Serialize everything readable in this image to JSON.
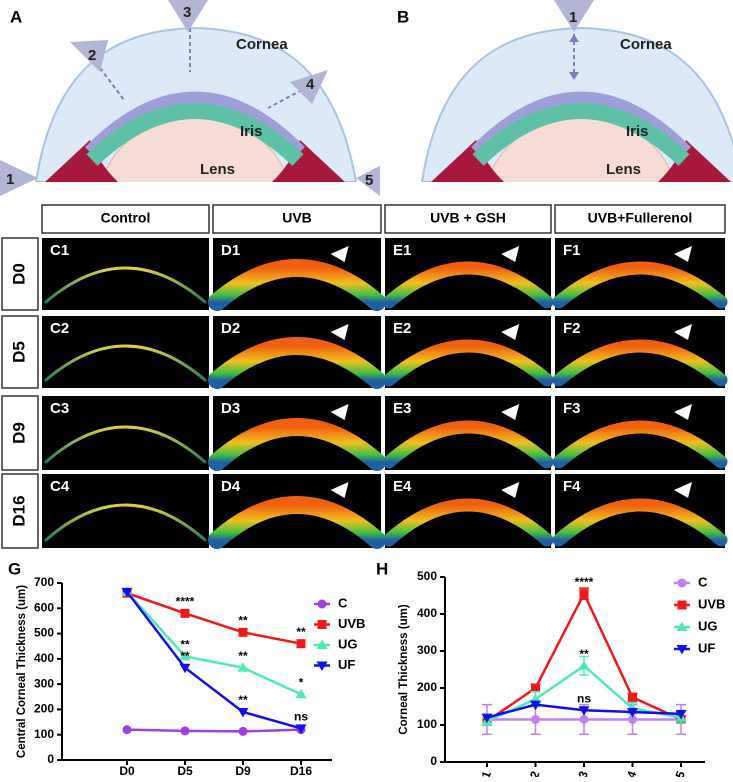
{
  "panel_a": {
    "label": "A",
    "cornea": "Cornea",
    "iris": "Iris",
    "lens": "Lens",
    "positions": [
      "1",
      "2",
      "3",
      "4",
      "5"
    ]
  },
  "panel_b": {
    "label": "B",
    "cornea": "Cornea",
    "iris": "Iris",
    "lens": "Lens",
    "positions": [
      "1"
    ]
  },
  "image_grid": {
    "columns": [
      "Control",
      "UVB",
      "UVB + GSH",
      "UVB+Fullerenol"
    ],
    "rows": [
      "D0",
      "D5",
      "D9",
      "D16"
    ],
    "panels": [
      [
        "C1",
        "D1",
        "E1",
        "F1"
      ],
      [
        "C2",
        "D2",
        "E2",
        "F2"
      ],
      [
        "C3",
        "D3",
        "E3",
        "F3"
      ],
      [
        "C4",
        "D4",
        "E4",
        "F4"
      ]
    ]
  },
  "chart_data": [
    {
      "type": "line",
      "panel_label": "G",
      "y_label": "Central Corneal Thickness (um)",
      "categories": [
        "D0",
        "D5",
        "D9",
        "D16"
      ],
      "ylim": [
        0,
        700
      ],
      "yticks": [
        0,
        100,
        200,
        300,
        400,
        500,
        600,
        700
      ],
      "series": [
        {
          "name": "C",
          "color": "#a040e0",
          "marker": "circle",
          "values": [
            120,
            115,
            113,
            120
          ]
        },
        {
          "name": "UVB",
          "color": "#f01818",
          "marker": "square",
          "values": [
            660,
            580,
            505,
            460
          ]
        },
        {
          "name": "UG",
          "color": "#50e8b8",
          "marker": "triangle-up",
          "values": [
            665,
            410,
            365,
            260
          ]
        },
        {
          "name": "UF",
          "color": "#1010e8",
          "marker": "triangle-down",
          "values": [
            665,
            365,
            190,
            125
          ]
        }
      ],
      "annotations": [
        {
          "text": "****",
          "series": "UVB",
          "category": "D5"
        },
        {
          "text": "**",
          "series": "UVB",
          "category": "D9"
        },
        {
          "text": "**",
          "series": "UVB",
          "category": "D16"
        },
        {
          "text": "**",
          "series": "UG",
          "category": "D5"
        },
        {
          "text": "**",
          "series": "UG",
          "category": "D9"
        },
        {
          "text": "*",
          "series": "UG",
          "category": "D16"
        },
        {
          "text": "**",
          "series": "UF",
          "category": "D5"
        },
        {
          "text": "**",
          "series": "UF",
          "category": "D9"
        },
        {
          "text": "ns",
          "series": "UF",
          "category": "D16"
        }
      ]
    },
    {
      "type": "line",
      "panel_label": "H",
      "y_label": "Corneal Thickness (um)",
      "categories": [
        "1",
        "2",
        "3",
        "4",
        "5"
      ],
      "ylim": [
        0,
        500
      ],
      "yticks": [
        0,
        100,
        200,
        300,
        400,
        500
      ],
      "series": [
        {
          "name": "C",
          "color": "#c080f0",
          "marker": "circle",
          "values": [
            115,
            115,
            115,
            115,
            115
          ],
          "errors": [
            40,
            40,
            40,
            40,
            40
          ]
        },
        {
          "name": "UVB",
          "color": "#f01818",
          "marker": "square",
          "values": [
            110,
            200,
            455,
            175,
            115
          ],
          "errors": [
            10,
            10,
            15,
            10,
            10
          ]
        },
        {
          "name": "UG",
          "color": "#50e8b8",
          "marker": "triangle-up",
          "values": [
            110,
            170,
            260,
            145,
            120
          ],
          "errors": [
            10,
            20,
            25,
            15,
            15
          ]
        },
        {
          "name": "UF",
          "color": "#1010e8",
          "marker": "triangle-down",
          "values": [
            120,
            155,
            140,
            135,
            130
          ]
        }
      ],
      "annotations": [
        {
          "text": "****",
          "series": "UVB",
          "category": "3"
        },
        {
          "text": "**",
          "series": "UG",
          "category": "3"
        },
        {
          "text": "ns",
          "series": "UF",
          "category": "3"
        }
      ]
    }
  ]
}
